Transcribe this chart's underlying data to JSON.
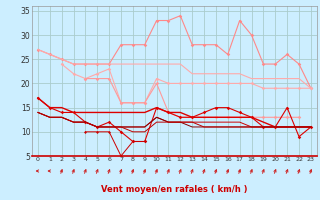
{
  "xlabel": "Vent moyen/en rafales ( km/h )",
  "background_color": "#cceeff",
  "grid_color": "#aacccc",
  "x_ticks": [
    0,
    1,
    2,
    3,
    4,
    5,
    6,
    7,
    8,
    9,
    10,
    11,
    12,
    13,
    14,
    15,
    16,
    17,
    18,
    19,
    20,
    21,
    22,
    23
  ],
  "ylim": [
    5,
    36
  ],
  "yticks": [
    5,
    10,
    15,
    20,
    25,
    30,
    35
  ],
  "series": [
    {
      "color": "#ff8888",
      "alpha": 1.0,
      "linewidth": 0.8,
      "marker": "D",
      "markersize": 1.8,
      "y": [
        27,
        26,
        25,
        24,
        24,
        24,
        24,
        28,
        28,
        28,
        33,
        33,
        34,
        28,
        28,
        28,
        26,
        33,
        30,
        24,
        24,
        26,
        24,
        19
      ]
    },
    {
      "color": "#ffaaaa",
      "alpha": 1.0,
      "linewidth": 0.8,
      "marker": null,
      "markersize": 0,
      "y": [
        27,
        26,
        25,
        24,
        24,
        24,
        24,
        24,
        24,
        24,
        24,
        24,
        24,
        22,
        22,
        22,
        22,
        22,
        21,
        21,
        21,
        21,
        21,
        19
      ]
    },
    {
      "color": "#ffaaaa",
      "alpha": 1.0,
      "linewidth": 0.8,
      "marker": "D",
      "markersize": 1.8,
      "y": [
        null,
        null,
        24,
        22,
        21,
        22,
        23,
        16,
        16,
        16,
        21,
        20,
        20,
        20,
        20,
        20,
        20,
        20,
        20,
        19,
        19,
        19,
        19,
        19
      ]
    },
    {
      "color": "#ff9999",
      "alpha": 1.0,
      "linewidth": 0.8,
      "marker": "D",
      "markersize": 1.8,
      "y": [
        null,
        null,
        null,
        null,
        21,
        21,
        21,
        16,
        16,
        16,
        20,
        14,
        13,
        13,
        13,
        13,
        13,
        13,
        13,
        13,
        13,
        13,
        13,
        null
      ]
    },
    {
      "color": "#dd0000",
      "alpha": 1.0,
      "linewidth": 1.0,
      "marker": null,
      "markersize": 0,
      "y": [
        17,
        15,
        15,
        14,
        14,
        14,
        14,
        14,
        14,
        14,
        15,
        14,
        14,
        13,
        13,
        13,
        13,
        13,
        13,
        12,
        11,
        11,
        11,
        11
      ]
    },
    {
      "color": "#dd0000",
      "alpha": 1.0,
      "linewidth": 0.8,
      "marker": "D",
      "markersize": 1.8,
      "y": [
        17,
        15,
        14,
        14,
        12,
        11,
        12,
        10,
        8,
        8,
        15,
        14,
        13,
        13,
        14,
        15,
        15,
        14,
        13,
        11,
        11,
        15,
        9,
        11
      ]
    },
    {
      "color": "#cc0000",
      "alpha": 1.0,
      "linewidth": 0.7,
      "marker": null,
      "markersize": 0,
      "y": [
        14,
        13,
        13,
        12,
        12,
        11,
        11,
        11,
        11,
        11,
        13,
        12,
        12,
        12,
        12,
        12,
        12,
        12,
        11,
        11,
        11,
        11,
        11,
        11
      ]
    },
    {
      "color": "#880000",
      "alpha": 1.0,
      "linewidth": 0.7,
      "marker": null,
      "markersize": 0,
      "y": [
        14,
        13,
        13,
        12,
        12,
        11,
        11,
        11,
        11,
        11,
        13,
        12,
        12,
        11,
        11,
        11,
        11,
        11,
        11,
        11,
        11,
        11,
        11,
        11
      ]
    },
    {
      "color": "#bb0000",
      "alpha": 1.0,
      "linewidth": 0.7,
      "marker": null,
      "markersize": 0,
      "y": [
        14,
        13,
        13,
        12,
        12,
        11,
        11,
        11,
        10,
        10,
        12,
        12,
        12,
        12,
        11,
        11,
        11,
        11,
        11,
        11,
        11,
        11,
        11,
        11
      ]
    },
    {
      "color": "#cc0000",
      "alpha": 1.0,
      "linewidth": 0.7,
      "marker": "D",
      "markersize": 1.5,
      "y": [
        null,
        null,
        null,
        null,
        10,
        10,
        10,
        5,
        8,
        8,
        null,
        null,
        null,
        null,
        null,
        null,
        null,
        null,
        null,
        null,
        null,
        null,
        null,
        null
      ]
    }
  ],
  "arrow_color": "#cc2222",
  "arrow_angles_deg": [
    180,
    180,
    45,
    45,
    45,
    45,
    45,
    45,
    45,
    45,
    45,
    45,
    45,
    45,
    45,
    45,
    45,
    45,
    45,
    45,
    45,
    45,
    45,
    45
  ]
}
